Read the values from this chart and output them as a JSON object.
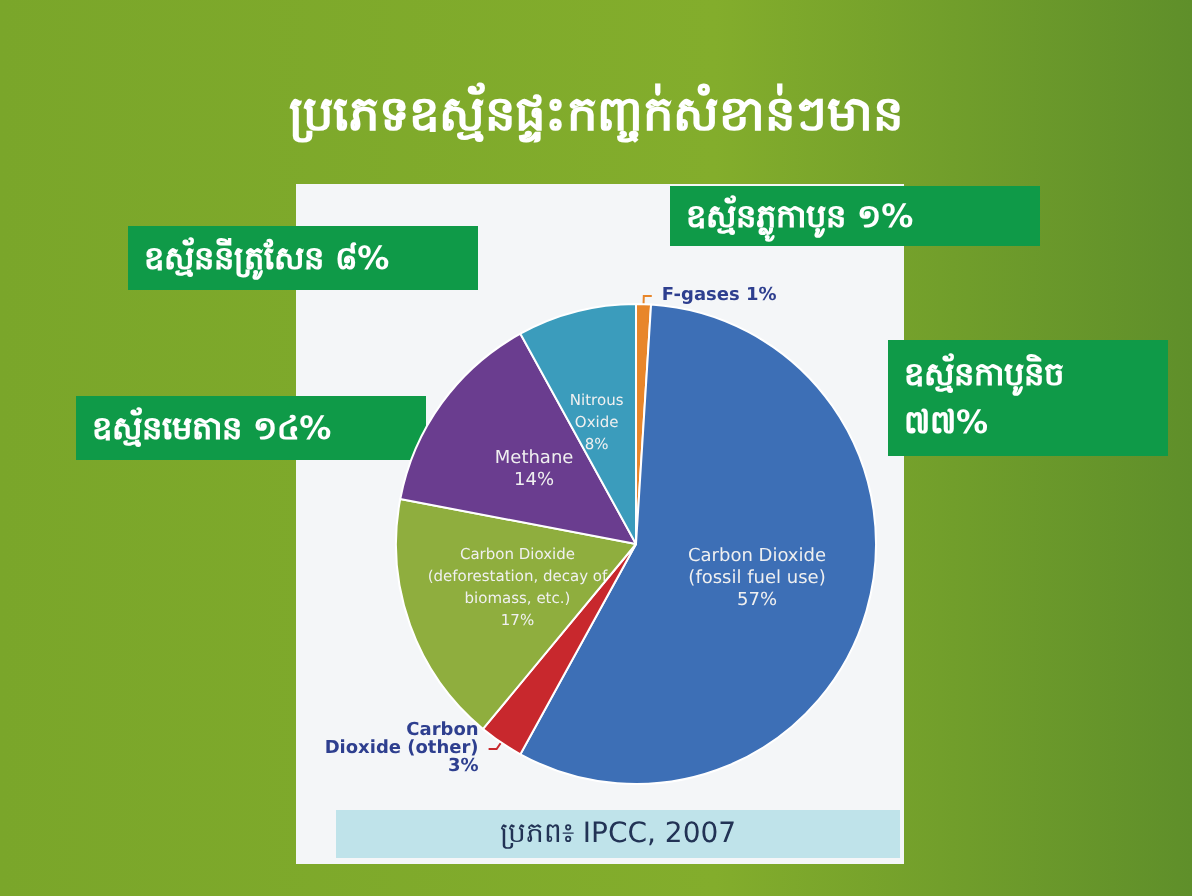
{
  "chart_data": {
    "type": "pie",
    "title": "ប្រភេទឧស្ម័នផ្ទះកញ្ចក់សំខាន់ៗមាន",
    "categories": [
      "F-gases",
      "Carbon Dioxide\n(fossil fuel use)",
      "Carbon\nDioxide (other)",
      "Carbon Dioxide\n(deforestation, decay of\nbiomass, etc.)",
      "Methane",
      "Nitrous\nOxide"
    ],
    "values": [
      1,
      57,
      3,
      17,
      14,
      8
    ],
    "value_labels": [
      "1%",
      "57%",
      "3%",
      "17%",
      "14%",
      "8%"
    ],
    "colors": [
      "#e8862a",
      "#3d6fb6",
      "#c8282d",
      "#8fae3e",
      "#6a3d8f",
      "#3b9cbc"
    ],
    "annotations": [
      "ឧស្ម័នភ្លូកាបូន ១%",
      "ឧស្ម័នកាបូនិច\n៧៧%",
      "ឧស្ម័នមេតាន ១៤%",
      "ឧស្ម័ននីត្រូសែន ៨%",
      "ប្រភព៖ IPCC, 2007"
    ],
    "legend": false
  }
}
